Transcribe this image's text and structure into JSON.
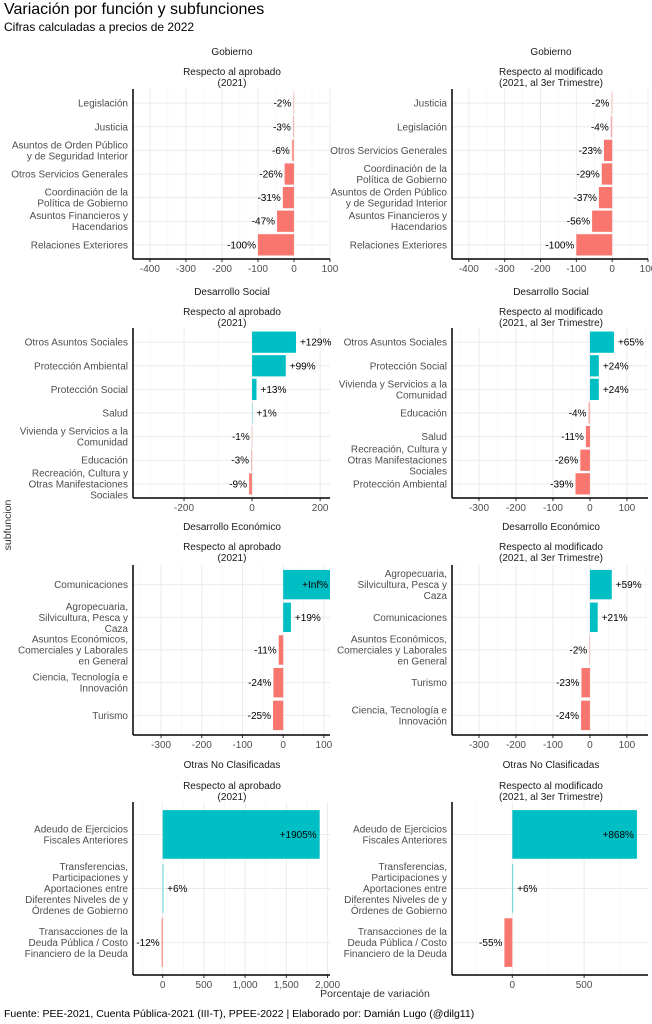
{
  "chart_data": {
    "type": "bar",
    "orientation": "horizontal",
    "title": "Variación por función y subfunciones",
    "subtitle": "Cifras calculadas a precios de 2022",
    "xlabel": "Porcentaje de variación",
    "ylabel": "subfuncion",
    "caption": "Fuente: PEE-2021, Cuenta Pública-2021 (III-T), PPEE-2022 | Elaborado por: Damián Lugo (@dilg11)",
    "grid": true,
    "colors": {
      "positive": "#00BFC4",
      "negative": "#F8766D"
    },
    "panels": [
      {
        "function": "Gobierno",
        "subtitle": [
          "Respecto al aprobado",
          "(2021)"
        ],
        "categories": [
          [
            "Legislación"
          ],
          [
            "Justicia"
          ],
          [
            "Asuntos de Orden Público",
            "y de Seguridad Interior"
          ],
          [
            "Otros Servicios Generales"
          ],
          [
            "Coordinación de la",
            "Política de Gobierno"
          ],
          [
            "Asuntos Financieros y",
            "Hacendarios"
          ],
          [
            "Relaciones Exteriores"
          ]
        ],
        "values": [
          -2,
          -3,
          -6,
          -26,
          -31,
          -47,
          -100
        ],
        "labels": [
          "-2%",
          "-3%",
          "-6%",
          "-26%",
          "-31%",
          "-47%",
          "-100%"
        ],
        "xlim": [
          -447,
          100
        ],
        "ticks": [
          -400,
          -300,
          -200,
          -100,
          0,
          100
        ],
        "tick_labels": [
          "-400",
          "-300",
          "-200",
          "-100",
          "0",
          "100"
        ]
      },
      {
        "function": "Gobierno",
        "subtitle": [
          "Respecto al modificado",
          "(2021, al 3er Trimestre)"
        ],
        "categories": [
          [
            "Justicia"
          ],
          [
            "Legislación"
          ],
          [
            "Otros Servicios Generales"
          ],
          [
            "Coordinación de la",
            "Política de Gobierno"
          ],
          [
            "Asuntos de Orden Público",
            "y de Seguridad Interior"
          ],
          [
            "Asuntos Financieros y",
            "Hacendarios"
          ],
          [
            "Relaciones Exteriores"
          ]
        ],
        "values": [
          -2,
          -4,
          -23,
          -29,
          -37,
          -56,
          -100
        ],
        "labels": [
          "-2%",
          "-4%",
          "-23%",
          "-29%",
          "-37%",
          "-56%",
          "-100%"
        ],
        "xlim": [
          -447,
          100
        ],
        "ticks": [
          -400,
          -300,
          -200,
          -100,
          0,
          100
        ],
        "tick_labels": [
          "-400",
          "-300",
          "-200",
          "-100",
          "0",
          "100"
        ]
      },
      {
        "function": "Desarrollo Social",
        "subtitle": [
          "Respecto al aprobado",
          "(2021)"
        ],
        "categories": [
          [
            "Otros Asuntos Sociales"
          ],
          [
            "Protección Ambiental"
          ],
          [
            "Protección Social"
          ],
          [
            "Salud"
          ],
          [
            "Vivienda y Servicios a la",
            "Comunidad"
          ],
          [
            "Educación"
          ],
          [
            "Recreación, Cultura y",
            "Otras Manifestaciones",
            "Sociales"
          ]
        ],
        "values": [
          129,
          99,
          13,
          1,
          -1,
          -3,
          -9
        ],
        "labels": [
          "+129%",
          "+99%",
          "+13%",
          "+1%",
          "-1%",
          "-3%",
          "-9%"
        ],
        "xlim": [
          -350,
          229
        ],
        "ticks": [
          -200,
          0,
          200
        ],
        "tick_labels": [
          "-200",
          "0",
          "200"
        ]
      },
      {
        "function": "Desarrollo Social",
        "subtitle": [
          "Respecto al modificado",
          "(2021, al 3er Trimestre)"
        ],
        "categories": [
          [
            "Otros Asuntos Sociales"
          ],
          [
            "Protección Social"
          ],
          [
            "Vivienda y Servicios a la",
            "Comunidad"
          ],
          [
            "Educación"
          ],
          [
            "Salud"
          ],
          [
            "Recreación, Cultura y",
            "Otras Manifestaciones",
            "Sociales"
          ],
          [
            "Protección Ambiental"
          ]
        ],
        "values": [
          65,
          24,
          24,
          -4,
          -11,
          -26,
          -39
        ],
        "labels": [
          "+65%",
          "+24%",
          "+24%",
          "-4%",
          "-11%",
          "-26%",
          "-39%"
        ],
        "xlim": [
          -373,
          157
        ],
        "ticks": [
          -300,
          -200,
          -100,
          0,
          100
        ],
        "tick_labels": [
          "-300",
          "-200",
          "-100",
          "0",
          "100"
        ]
      },
      {
        "function": "Desarrollo Económico",
        "subtitle": [
          "Respecto al aprobado",
          "(2021)"
        ],
        "categories": [
          [
            "Comunicaciones"
          ],
          [
            "Agropecuaria,",
            "Silvicultura, Pesca y",
            "Caza"
          ],
          [
            "Asuntos Económicos,",
            "Comerciales y Laborales",
            "en General"
          ],
          [
            "Ciencia, Tecnología e",
            "Innovación"
          ],
          [
            "Turismo"
          ]
        ],
        "values": [
          "Inf",
          19,
          -11,
          -24,
          -25
        ],
        "labels": [
          "+Inf%",
          "+19%",
          "-11%",
          "-24%",
          "-25%"
        ],
        "xlim": [
          -369,
          115
        ],
        "ticks": [
          -300,
          -200,
          -100,
          0,
          100
        ],
        "tick_labels": [
          "-300",
          "-200",
          "-100",
          "0",
          "100"
        ]
      },
      {
        "function": "Desarrollo Económico",
        "subtitle": [
          "Respecto al modificado",
          "(2021, al 3er Trimestre)"
        ],
        "categories": [
          [
            "Agropecuaria,",
            "Silvicultura, Pesca y",
            "Caza"
          ],
          [
            "Comunicaciones"
          ],
          [
            "Asuntos Económicos,",
            "Comerciales y Laborales",
            "en General"
          ],
          [
            "Turismo"
          ],
          [
            "Ciencia, Tecnología e",
            "Innovación"
          ]
        ],
        "values": [
          59,
          21,
          -2,
          -23,
          -24
        ],
        "labels": [
          "+59%",
          "+21%",
          "-2%",
          "-23%",
          "-24%"
        ],
        "xlim": [
          -373,
          157
        ],
        "ticks": [
          -300,
          -200,
          -100,
          0,
          100
        ],
        "tick_labels": [
          "-300",
          "-200",
          "-100",
          "0",
          "100"
        ]
      },
      {
        "function": "Otras No Clasificadas",
        "subtitle": [
          "Respecto al aprobado",
          "(2021)"
        ],
        "categories": [
          [
            "Adeudo de Ejercicios",
            "Fiscales Anteriores"
          ],
          [
            "Transferencias,",
            "Participaciones y",
            "Aportaciones entre",
            "Diferentes Niveles de y",
            "Órdenes de Gobierno"
          ],
          [
            "Transacciones de la",
            "Deuda Pública / Costo",
            "Financiero de la Deuda"
          ]
        ],
        "values": [
          1905,
          6,
          -12
        ],
        "labels": [
          "+1905%",
          "+6%",
          "-12%"
        ],
        "xlim": [
          -360,
          2030
        ],
        "ticks": [
          0,
          500,
          1000,
          1500,
          2000
        ],
        "tick_labels": [
          "0",
          "500",
          "1,000",
          "1,500",
          "2,000"
        ]
      },
      {
        "function": "Otras No Clasificadas",
        "subtitle": [
          "Respecto al modificado",
          "(2021, al 3er Trimestre)"
        ],
        "categories": [
          [
            "Adeudo de Ejercicios",
            "Fiscales Anteriores"
          ],
          [
            "Transferencias,",
            "Participaciones y",
            "Aportaciones entre",
            "Diferentes Niveles de y",
            "Órdenes de Gobierno"
          ],
          [
            "Transacciones de la",
            "Deuda Pública / Costo",
            "Financiero de la Deuda"
          ]
        ],
        "values": [
          868,
          6,
          -55
        ],
        "labels": [
          "+868%",
          "+6%",
          "-55%"
        ],
        "xlim": [
          -420,
          945
        ],
        "ticks": [
          0,
          500
        ],
        "tick_labels": [
          "0",
          "500"
        ]
      }
    ]
  }
}
